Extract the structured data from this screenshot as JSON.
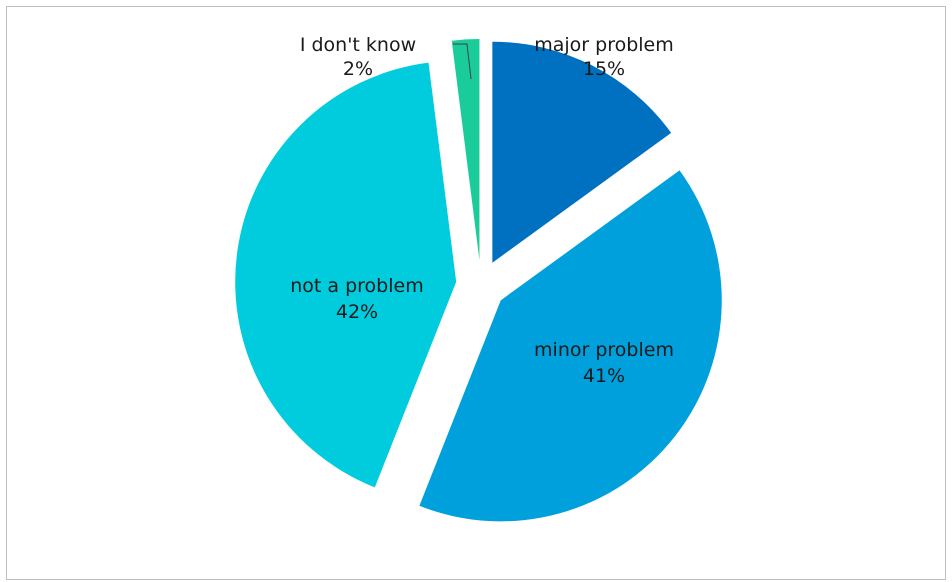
{
  "chart_data": {
    "type": "pie",
    "title": "",
    "exploded": true,
    "legend": "none",
    "slices": [
      {
        "label": "major problem",
        "value": 15,
        "value_label": "15%",
        "color": "#0070C0"
      },
      {
        "label": "minor problem",
        "value": 41,
        "value_label": "41%",
        "color": "#00A0DC"
      },
      {
        "label": "not a problem",
        "value": 42,
        "value_label": "42%",
        "color": "#00CCDD"
      },
      {
        "label": "I don't know",
        "value": 2,
        "value_label": "2%",
        "color": "#1ACC99"
      }
    ]
  }
}
